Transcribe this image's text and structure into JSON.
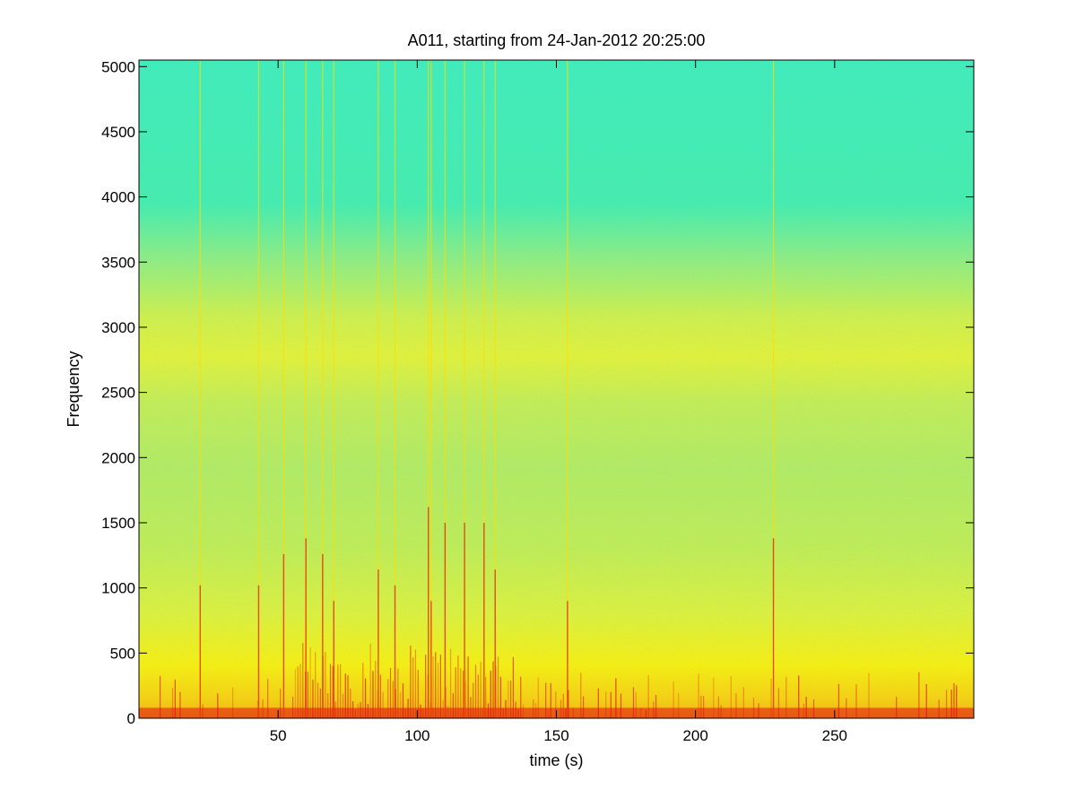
{
  "chart_data": {
    "type": "heatmap",
    "title": "A011, starting from 24-Jan-2012 20:25:00",
    "xlabel": "time (s)",
    "ylabel": "Frequency",
    "xlim": [
      0,
      300
    ],
    "ylim": [
      0,
      5050
    ],
    "xticks": [
      50,
      100,
      150,
      200,
      250
    ],
    "yticks": [
      0,
      500,
      1000,
      1500,
      2000,
      2500,
      3000,
      3500,
      4000,
      4500,
      5000
    ],
    "grid": false,
    "colormap": "jet",
    "colors": {
      "low": "#3cf2b0",
      "mid": "#d8f23a",
      "high": "#ffff00",
      "peak": "#e01010"
    },
    "bands": [
      {
        "from_freq": 3600,
        "to_freq": 5050,
        "level": "low"
      },
      {
        "from_freq": 2600,
        "to_freq": 3000,
        "level": "mid"
      },
      {
        "from_freq": 0,
        "to_freq": 700,
        "level": "high"
      },
      {
        "from_freq": 0,
        "to_freq": 120,
        "level": "peak"
      }
    ],
    "transient_times": [
      22,
      43,
      52,
      60,
      66,
      70,
      86,
      92,
      104,
      105,
      110,
      117,
      124,
      128,
      154,
      228
    ]
  }
}
